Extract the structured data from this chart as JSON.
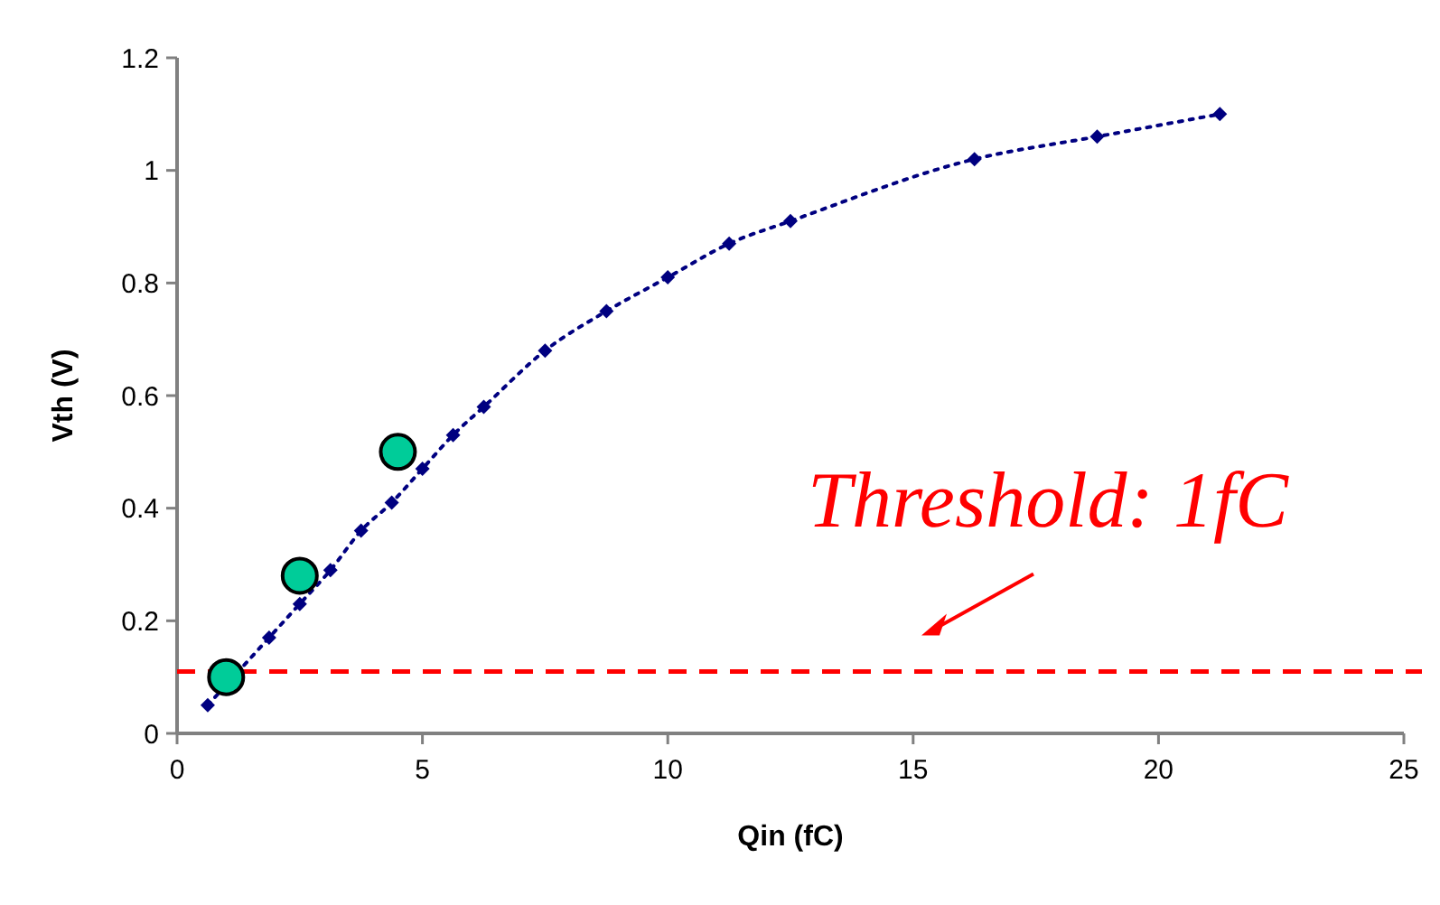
{
  "chart_data": {
    "type": "line",
    "xlabel": "Qin (fC)",
    "ylabel": "Vth (V)",
    "xlim": [
      0,
      25
    ],
    "xticks": [
      0,
      5,
      10,
      15,
      20,
      25
    ],
    "ylim": [
      0,
      1.2
    ],
    "yticks": [
      0,
      {
        "value": 0.2,
        "label": "0.2"
      },
      {
        "value": 0.4,
        "label": "0.4"
      },
      {
        "value": 0.6,
        "label": "0.6"
      },
      {
        "value": 0.8,
        "label": "0.8"
      },
      1,
      {
        "value": 1.2,
        "label": "1.2"
      }
    ],
    "grid": false,
    "annotations": [
      "Threshold: 1fC"
    ],
    "series": [
      {
        "color": "#000080",
        "marker": "diamond",
        "line_style": "dotted",
        "x": [
          0.625,
          1.875,
          2.5,
          3.125,
          3.75,
          4.375,
          5,
          5.625,
          6.25,
          7.5,
          8.75,
          10,
          11.25,
          12.5,
          16.25,
          18.75,
          21.25
        ],
        "values": [
          0.05,
          0.17,
          0.23,
          0.29,
          0.36,
          0.41,
          0.47,
          0.53,
          0.58,
          0.68,
          0.75,
          0.81,
          0.87,
          0.91,
          1.02,
          1.06,
          1.1
        ]
      },
      {
        "type": "scatter",
        "color": "#00cc99",
        "marker": "circle",
        "x": [
          1,
          2.5,
          4.5
        ],
        "values": [
          0.1,
          0.28,
          0.5
        ]
      }
    ],
    "ref_lines": [
      {
        "axis": "y",
        "value": 0.11,
        "color": "#ff0000",
        "line_style": "dashed"
      }
    ]
  }
}
